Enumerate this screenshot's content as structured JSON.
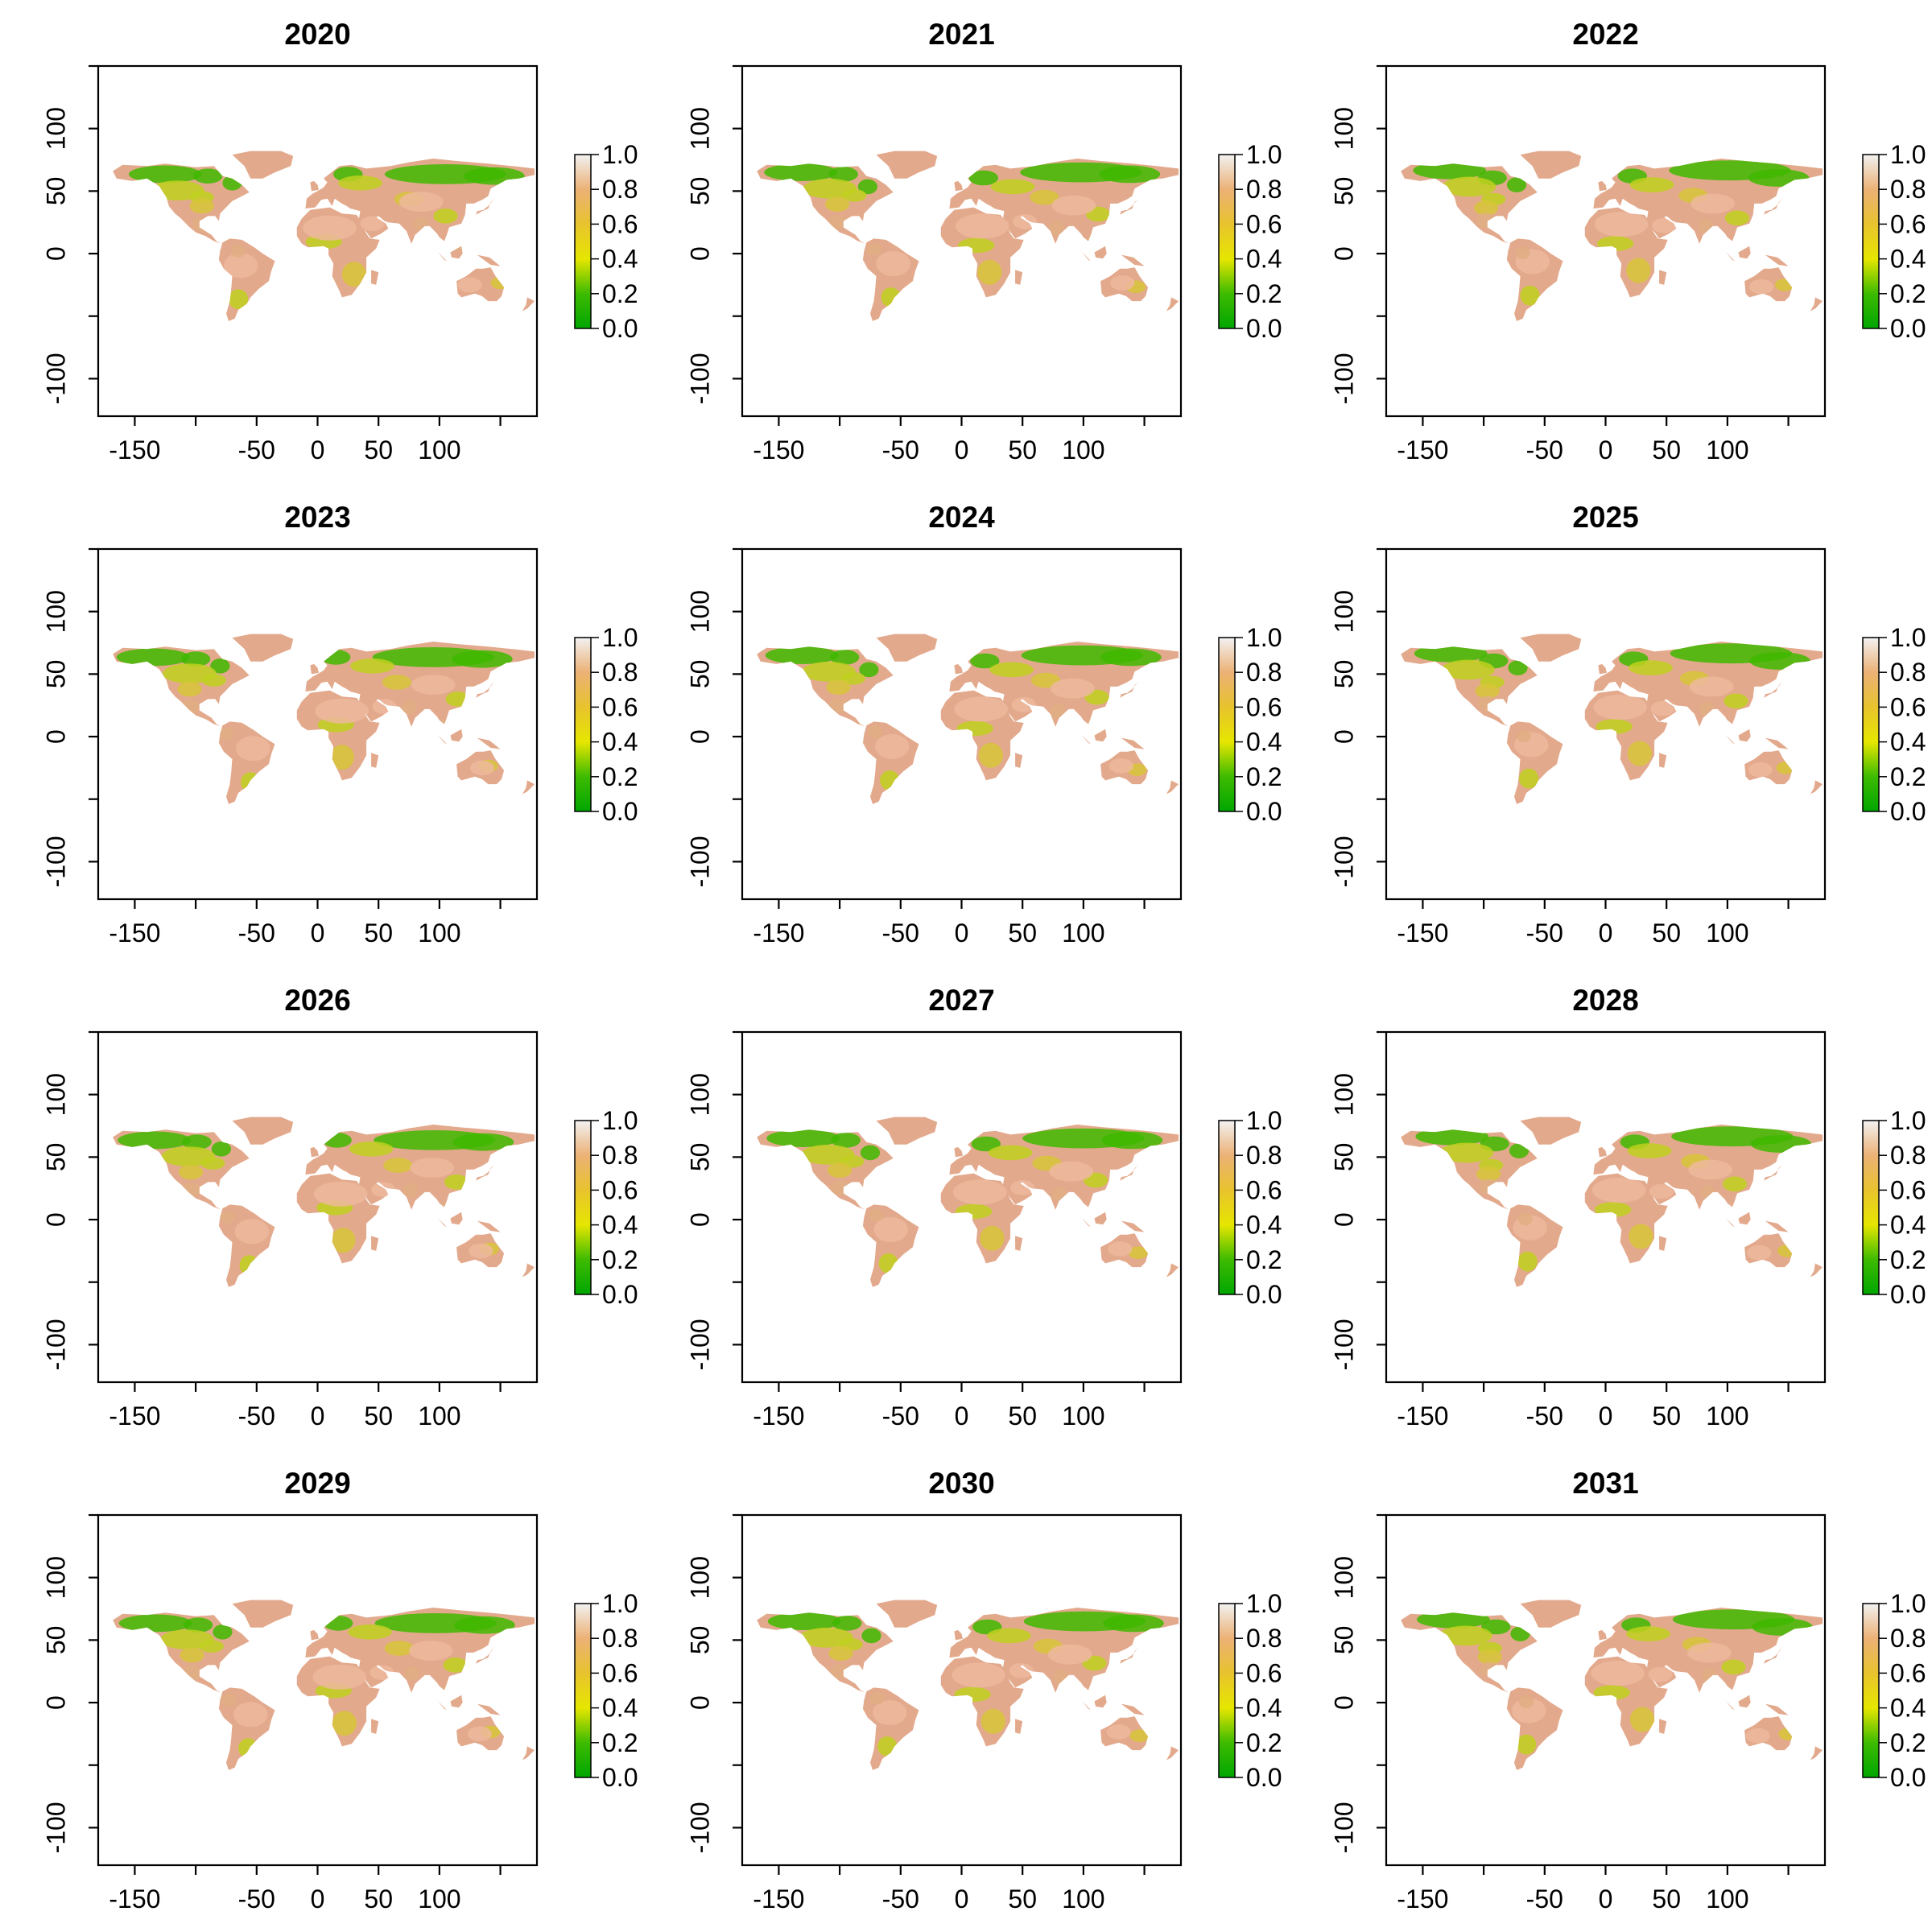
{
  "figure": {
    "x_ticks": [
      "-150",
      "-50",
      "0",
      "50",
      "100"
    ],
    "y_ticks": [
      "100",
      "50",
      "0",
      "-100"
    ],
    "legend_ticks": [
      "1.0",
      "0.8",
      "0.6",
      "0.4",
      "0.2",
      "0.0"
    ],
    "panels": [
      {
        "title": "2020"
      },
      {
        "title": "2021"
      },
      {
        "title": "2022"
      },
      {
        "title": "2023"
      },
      {
        "title": "2024"
      },
      {
        "title": "2025"
      },
      {
        "title": "2026"
      },
      {
        "title": "2027"
      },
      {
        "title": "2028"
      },
      {
        "title": "2029"
      },
      {
        "title": "2030"
      },
      {
        "title": "2031"
      }
    ]
  },
  "chart_data": {
    "type": "heatmap",
    "layout": "4x3 small multiples of global raster maps",
    "xlim": [
      -180,
      180
    ],
    "ylim": [
      -130,
      150
    ],
    "x_tick_values": [
      -150,
      -100,
      -50,
      0,
      50,
      100,
      150
    ],
    "y_tick_values": [
      -150,
      -100,
      -50,
      0,
      50,
      100,
      150
    ],
    "colorscale": {
      "range": [
        0,
        1
      ],
      "stops": [
        {
          "value": 0.0,
          "color": "#00A600"
        },
        {
          "value": 0.2,
          "color": "#3EBB00"
        },
        {
          "value": 0.4,
          "color": "#E6E600"
        },
        {
          "value": 0.6,
          "color": "#E8C32E"
        },
        {
          "value": 0.8,
          "color": "#ECB176"
        },
        {
          "value": 1.0,
          "color": "#F2F2F2"
        }
      ]
    },
    "colors": {
      "north_boreal": "#3FB800",
      "temperate": "#BFD11E",
      "mid": "#D7C53A",
      "arid": "#E3A98C",
      "desert": "#EDB99E",
      "tropics": "#E1AE82"
    }
  }
}
